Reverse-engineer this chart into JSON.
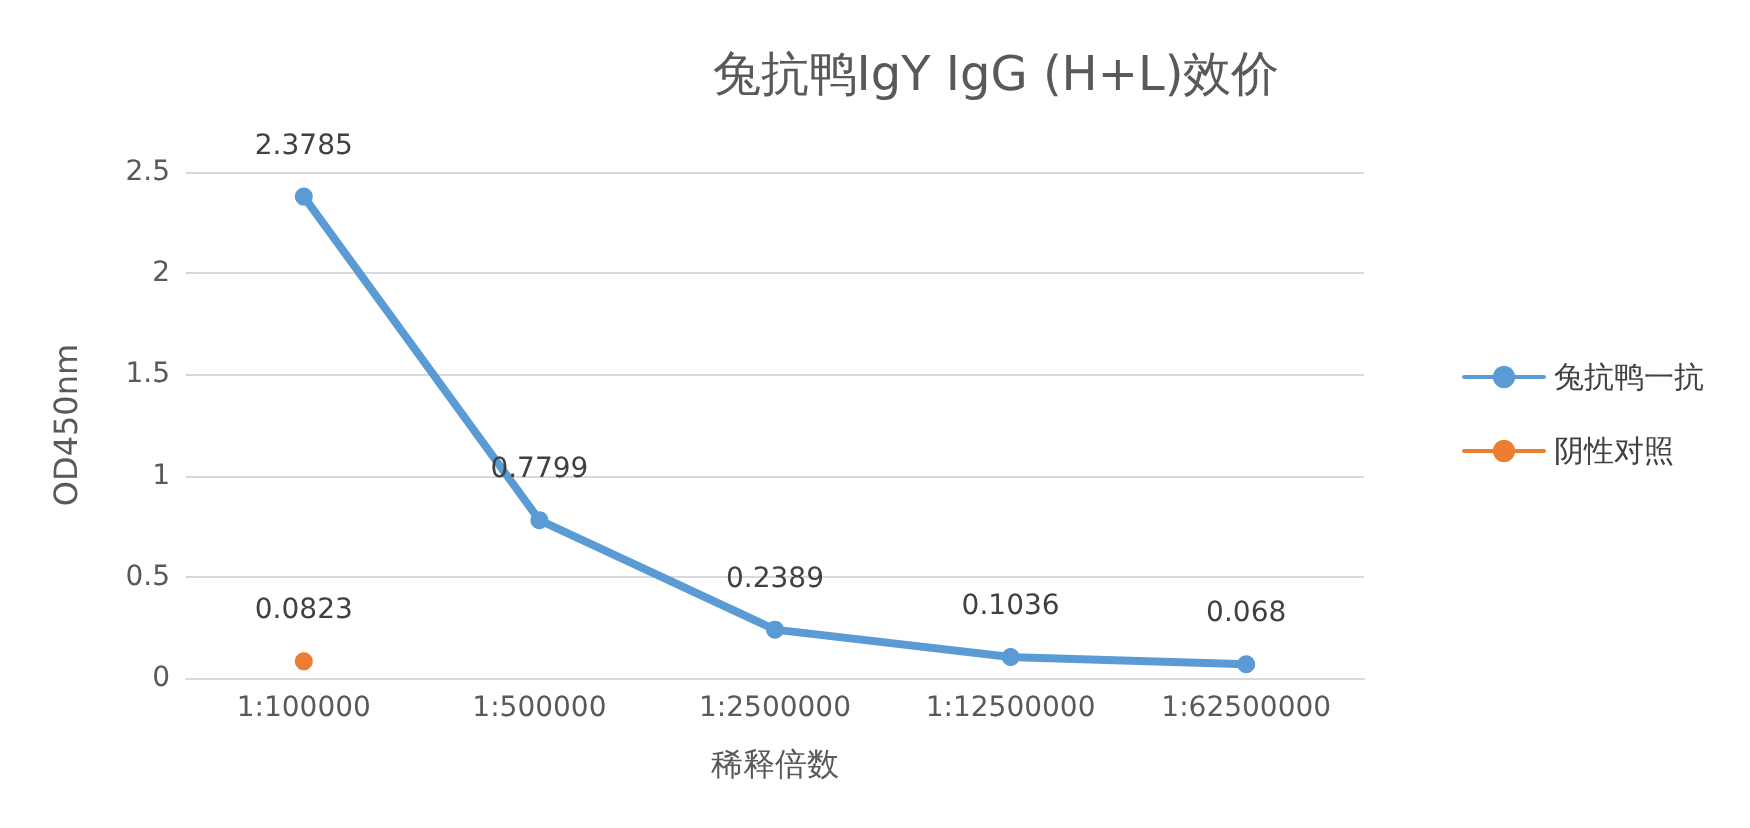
{
  "chart_data": {
    "type": "line",
    "title": "兔抗鸭IgY IgG (H+L)效价",
    "xlabel": "稀释倍数",
    "ylabel": "OD450nm",
    "categories": [
      "1:100000",
      "1:500000",
      "1:2500000",
      "1:12500000",
      "1:62500000"
    ],
    "series": [
      {
        "name": "兔抗鸭一抗",
        "color": "#5b9bd5",
        "values": [
          2.3785,
          0.7799,
          0.2389,
          0.1036,
          0.068
        ]
      },
      {
        "name": "阴性对照",
        "color": "#ed7d31",
        "values": [
          0.0823,
          null,
          null,
          null,
          null
        ]
      }
    ],
    "ylim": [
      0,
      2.5
    ],
    "yticks": [
      0,
      0.5,
      1,
      1.5,
      2,
      2.5
    ],
    "grid": "y",
    "legend": "right",
    "marker": "circle",
    "line_style": "solid",
    "data_labels": true
  }
}
